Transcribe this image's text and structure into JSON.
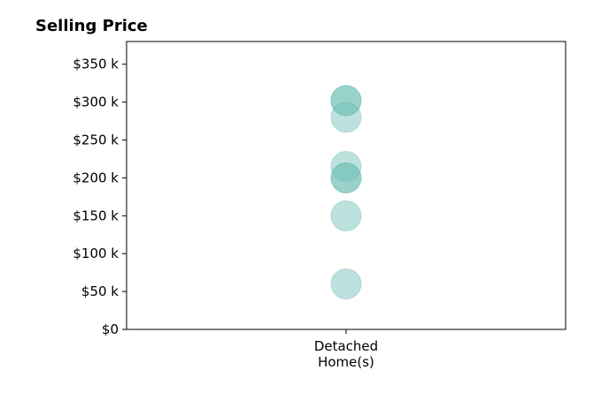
{
  "chart_data": {
    "type": "scatter",
    "title": "Selling Price",
    "xlabel": "",
    "ylabel": "",
    "categories": [
      "Detached\nHome(s)"
    ],
    "y_tick_labels": [
      "$0",
      "$50 k",
      "$100 k",
      "$150 k",
      "$200 k",
      "$250 k",
      "$300 k",
      "$350 k"
    ],
    "y_ticks": [
      0,
      50000,
      100000,
      150000,
      200000,
      250000,
      300000,
      350000
    ],
    "ylim": [
      0,
      380000
    ],
    "grid": false,
    "legend": "none",
    "series": [
      {
        "category": "Detached\nHome(s)",
        "values": [
          60000,
          150000,
          200000,
          200000,
          215000,
          280000,
          302000,
          302000
        ]
      }
    ],
    "marker_color": "#6dbfb3",
    "marker_opacity": 0.45
  }
}
